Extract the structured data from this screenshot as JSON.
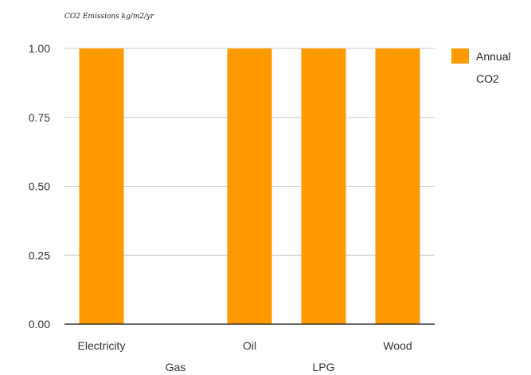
{
  "chart_data": {
    "type": "bar",
    "title": "CO2 Emissions kg/m2/yr",
    "xlabel": "",
    "ylabel": "",
    "categories": [
      "Electricity",
      "Gas",
      "Oil",
      "LPG",
      "Wood"
    ],
    "series": [
      {
        "name": "Annual CO2",
        "legend_lines": [
          "Annual",
          "CO2"
        ],
        "values": [
          1.0,
          0.0,
          1.0,
          1.0,
          1.0
        ],
        "color": "#ff9900"
      }
    ],
    "y_ticks": [
      "0.00",
      "0.25",
      "0.50",
      "0.75",
      "1.00"
    ],
    "ylim": [
      0,
      1
    ],
    "grid": true,
    "legend_position": "right",
    "colors": {
      "bar": "#ff9900",
      "grid": "#cccccc",
      "axis": "#333333"
    }
  }
}
